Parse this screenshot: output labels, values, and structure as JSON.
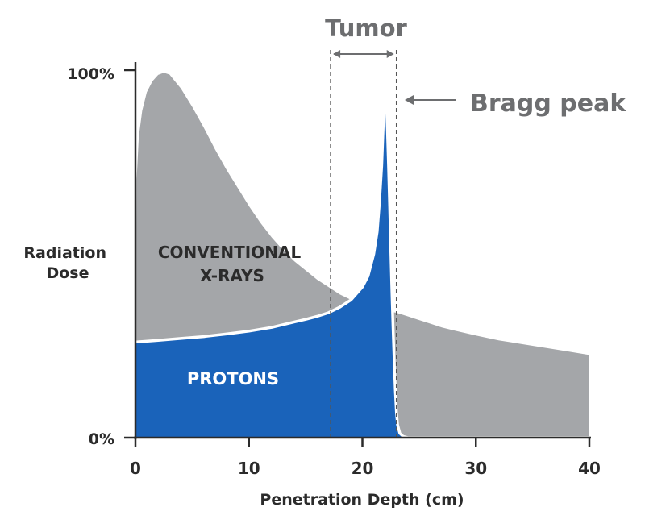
{
  "chart_data": {
    "type": "area",
    "title": "",
    "xlabel": "Penetration Depth (cm)",
    "ylabel_lines": [
      "Radiation",
      "Dose"
    ],
    "xlim": [
      0,
      40
    ],
    "ylim": [
      0,
      100
    ],
    "x_ticks": [
      0,
      10,
      20,
      30,
      40
    ],
    "y_tick_labels": [
      "100%",
      "0%"
    ],
    "grid": false,
    "colors": {
      "xray": "#a4a6a9",
      "protons": "#1a63ba",
      "outline": "#ffffff",
      "annotation": "#6d6e70",
      "text": "#2b2b2b"
    },
    "series": [
      {
        "name_lines": [
          "CONVENTIONAL",
          "X-RAYS"
        ],
        "x": [
          0,
          0.1,
          0.3,
          0.6,
          1,
          1.5,
          2,
          2.5,
          3,
          4,
          5,
          6,
          7,
          8,
          9,
          10,
          11,
          12,
          13,
          14,
          15,
          16,
          17,
          18,
          19,
          20,
          21,
          22,
          23,
          24,
          25,
          26,
          27,
          28,
          29,
          30,
          32,
          34,
          36,
          38,
          40
        ],
        "values": [
          26,
          70,
          82,
          89,
          94,
          97,
          98.7,
          99.3,
          98.8,
          95,
          90,
          84.5,
          78.5,
          73,
          68,
          63,
          58.5,
          54.5,
          51,
          48,
          45.5,
          43,
          41,
          39,
          37.5,
          36,
          35,
          34.5,
          34,
          33,
          32,
          31,
          30,
          29.2,
          28.5,
          27.8,
          26.5,
          25.5,
          24.5,
          23.5,
          22.5
        ]
      },
      {
        "name": "PROTONS",
        "x": [
          0,
          2,
          4,
          6,
          8,
          10,
          12,
          14,
          15,
          16,
          17,
          18,
          19,
          20,
          20.5,
          21,
          21.3,
          21.5,
          21.7,
          21.8,
          21.9,
          22,
          22.1,
          22.2,
          22.3,
          22.4,
          22.5,
          22.6,
          22.7,
          22.8,
          22.9,
          23,
          23.1,
          23.3,
          23.6,
          24,
          40
        ],
        "values": [
          26,
          26.5,
          27,
          27.5,
          28.2,
          29,
          30,
          31.5,
          32.2,
          33,
          34,
          35.5,
          37.5,
          41,
          44,
          50,
          56,
          64,
          74,
          82,
          90,
          95,
          92,
          84,
          74,
          63,
          51,
          40,
          30,
          21,
          13,
          7,
          3.5,
          1.2,
          0.3,
          0,
          0
        ]
      }
    ],
    "annotations": {
      "tumor_label": "Tumor",
      "tumor_range": [
        17.2,
        23
      ],
      "bragg_label": "Bragg peak",
      "bragg_peak": [
        22,
        95
      ]
    }
  }
}
